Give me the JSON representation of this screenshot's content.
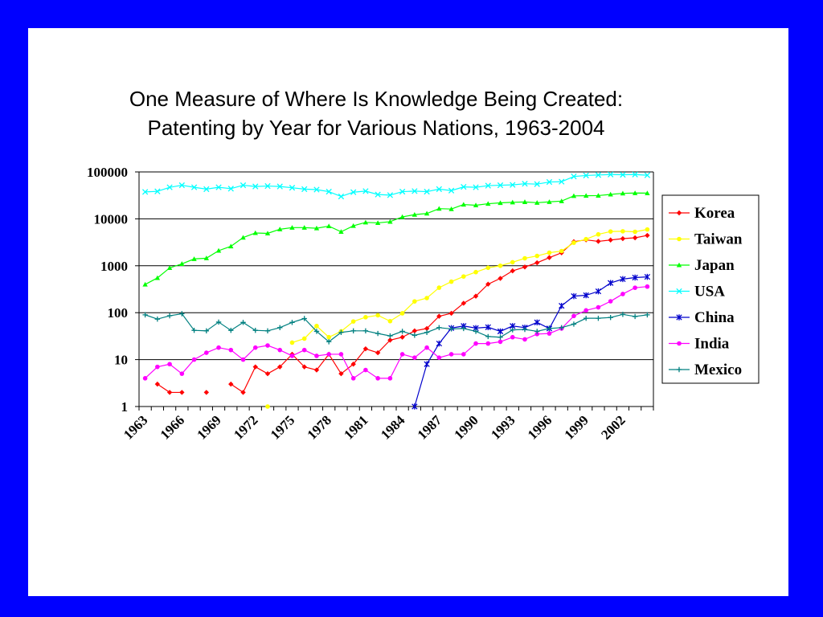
{
  "slide": {
    "background": "#0000FF"
  },
  "chart_data": {
    "type": "line",
    "title": "One Measure of Where Is Knowledge Being Created:",
    "subtitle": "Patenting by Year for Various Nations, 1963-2004",
    "xlabel": "",
    "ylabel": "",
    "scale": "log",
    "ylim": [
      1,
      100000
    ],
    "yticks": [
      "100000",
      "10000",
      "1000",
      "100",
      "10",
      "1"
    ],
    "xticks": [
      "1963",
      "1966",
      "1969",
      "1972",
      "1975",
      "1978",
      "1981",
      "1984",
      "1987",
      "1990",
      "1993",
      "1996",
      "1999",
      "2002"
    ],
    "x": [
      1963,
      1964,
      1965,
      1966,
      1967,
      1968,
      1969,
      1970,
      1971,
      1972,
      1973,
      1974,
      1975,
      1976,
      1977,
      1978,
      1979,
      1980,
      1981,
      1982,
      1983,
      1984,
      1985,
      1986,
      1987,
      1988,
      1989,
      1990,
      1991,
      1992,
      1993,
      1994,
      1995,
      1996,
      1997,
      1998,
      1999,
      2000,
      2001,
      2002,
      2003,
      2004
    ],
    "grid": true,
    "legend_position": "right",
    "series": [
      {
        "name": "Korea",
        "color": "#FF0000",
        "marker": "diamond",
        "values": [
          null,
          3,
          2,
          2,
          null,
          2,
          null,
          3,
          2,
          7,
          5,
          7,
          13,
          7,
          6,
          13,
          5,
          8,
          17,
          14,
          26,
          30,
          41,
          46,
          84,
          97,
          159,
          225,
          405,
          538,
          779,
          943,
          1161,
          1493,
          1891,
          3259,
          3562,
          3314,
          3538,
          3786,
          3944,
          4428
        ]
      },
      {
        "name": "Taiwan",
        "color": "#FFFF00",
        "marker": "circle",
        "values": [
          null,
          null,
          null,
          null,
          null,
          null,
          null,
          null,
          null,
          null,
          1,
          null,
          23,
          28,
          52,
          30,
          40,
          65,
          80,
          88,
          66,
          97,
          174,
          205,
          341,
          458,
          591,
          732,
          906,
          1001,
          1189,
          1443,
          1620,
          1897,
          2057,
          3100,
          3693,
          4667,
          5371,
          5431,
          5298,
          5938
        ]
      },
      {
        "name": "Japan",
        "color": "#00FF00",
        "marker": "triangle",
        "values": [
          400,
          550,
          900,
          1100,
          1400,
          1450,
          2100,
          2600,
          4000,
          5000,
          4900,
          6000,
          6500,
          6500,
          6300,
          7000,
          5300,
          7100,
          8400,
          8200,
          8700,
          11000,
          12300,
          13000,
          16500,
          16200,
          20200,
          19500,
          21000,
          21900,
          22500,
          22900,
          22100,
          23000,
          23900,
          30900,
          31100,
          31300,
          33200,
          34900,
          35500,
          35300
        ]
      },
      {
        "name": "USA",
        "color": "#00FFFF",
        "marker": "x",
        "values": [
          37500,
          38500,
          47000,
          52000,
          47000,
          43000,
          47000,
          44000,
          52000,
          49000,
          50000,
          49000,
          46000,
          43000,
          42000,
          38000,
          30000,
          37000,
          39000,
          33000,
          32000,
          38000,
          39000,
          38000,
          43000,
          40000,
          48000,
          47000,
          51000,
          52000,
          53000,
          56000,
          55000,
          61000,
          62000,
          80000,
          84000,
          86000,
          88000,
          87000,
          88000,
          85000
        ]
      },
      {
        "name": "China",
        "color": "#0000CC",
        "marker": "star",
        "values": [
          null,
          null,
          null,
          null,
          null,
          null,
          null,
          null,
          null,
          null,
          null,
          null,
          null,
          null,
          null,
          null,
          null,
          null,
          null,
          null,
          null,
          null,
          1,
          8,
          22,
          47,
          52,
          47,
          49,
          40,
          52,
          48,
          62,
          46,
          140,
          225,
          235,
          285,
          430,
          520,
          560,
          580
        ]
      },
      {
        "name": "India",
        "color": "#FF00FF",
        "marker": "circle",
        "values": [
          4,
          7,
          8,
          5,
          10,
          14,
          18,
          16,
          10,
          18,
          20,
          16,
          12,
          16,
          12,
          13,
          13,
          4,
          6,
          4,
          4,
          13,
          11,
          18,
          11,
          13,
          13,
          22,
          22,
          24,
          30,
          27,
          35,
          36,
          46,
          85,
          112,
          130,
          175,
          250,
          340,
          360
        ]
      },
      {
        "name": "Mexico",
        "color": "#008080",
        "marker": "plus",
        "values": [
          90,
          73,
          86,
          95,
          42,
          41,
          63,
          42,
          62,
          42,
          41,
          48,
          62,
          75,
          40,
          24,
          38,
          41,
          41,
          36,
          32,
          40,
          33,
          38,
          48,
          45,
          46,
          40,
          31,
          30,
          43,
          44,
          40,
          46,
          48,
          57,
          76,
          76,
          79,
          92,
          83,
          90
        ]
      }
    ]
  }
}
